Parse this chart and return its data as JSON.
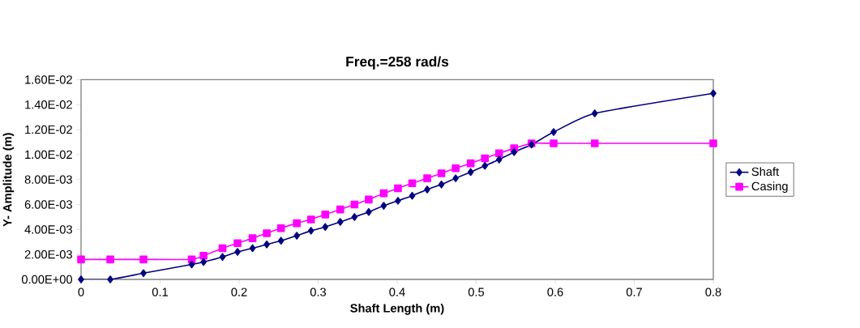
{
  "chart_data": {
    "type": "line",
    "title": "Freq.=258 rad/s",
    "xlabel": "Shaft Length (m)",
    "ylabel": "Y- Amplitude (m)",
    "xlim": [
      0,
      0.8
    ],
    "xticks": [
      0,
      0.1,
      0.2,
      0.3,
      0.4,
      0.5,
      0.6,
      0.7,
      0.8
    ],
    "ylim": [
      0,
      0.016
    ],
    "yticks": [
      {
        "value": 0,
        "label": "0.00E+00"
      },
      {
        "value": 0.002,
        "label": "2.00E-03"
      },
      {
        "value": 0.004,
        "label": "4.00E-03"
      },
      {
        "value": 0.006,
        "label": "6.00E-03"
      },
      {
        "value": 0.008,
        "label": "8.00E-03"
      },
      {
        "value": 0.01,
        "label": "1.00E-02"
      },
      {
        "value": 0.012,
        "label": "1.20E-02"
      },
      {
        "value": 0.014,
        "label": "1.40E-02"
      },
      {
        "value": 0.016,
        "label": "1.60E-02"
      }
    ],
    "x": [
      0,
      0.037,
      0.079,
      0.14,
      0.155,
      0.179,
      0.198,
      0.217,
      0.235,
      0.253,
      0.273,
      0.291,
      0.309,
      0.328,
      0.346,
      0.364,
      0.383,
      0.401,
      0.419,
      0.438,
      0.456,
      0.474,
      0.493,
      0.511,
      0.529,
      0.548,
      0.57,
      0.598,
      0.65,
      0.8
    ],
    "grid": false,
    "legend": "right",
    "series": [
      {
        "name": "Shaft",
        "color": "#000080",
        "marker": "diamond",
        "values": [
          0,
          0.0,
          0.0005,
          0.0012,
          0.0014,
          0.0018,
          0.0022,
          0.0025,
          0.0028,
          0.0031,
          0.0035,
          0.0039,
          0.0042,
          0.0046,
          0.005,
          0.0054,
          0.0059,
          0.0063,
          0.0067,
          0.0072,
          0.0076,
          0.0081,
          0.0086,
          0.0091,
          0.0096,
          0.0102,
          0.0108,
          0.0118,
          0.0133,
          0.0149
        ]
      },
      {
        "name": "Casing",
        "color": "#ff00ff",
        "marker": "square",
        "values": [
          0.0016,
          0.0016,
          0.0016,
          0.0016,
          0.0019,
          0.0025,
          0.0029,
          0.0033,
          0.0037,
          0.0041,
          0.0045,
          0.0048,
          0.0052,
          0.0056,
          0.006,
          0.0064,
          0.0069,
          0.0073,
          0.0077,
          0.0081,
          0.0085,
          0.0089,
          0.0093,
          0.0097,
          0.0101,
          0.0105,
          0.0109,
          0.0109,
          0.0109,
          0.0109
        ]
      }
    ]
  }
}
